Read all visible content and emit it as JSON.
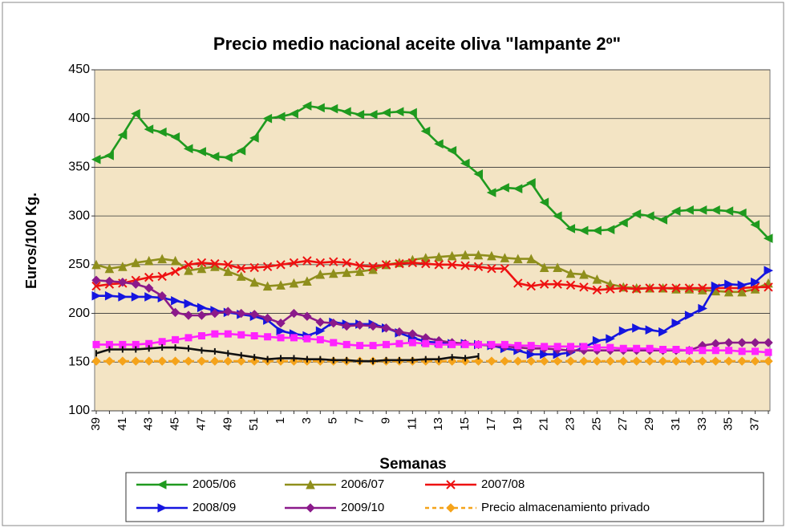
{
  "chart_data": {
    "type": "line",
    "title": "Precio medio nacional  aceite oliva \"lampante 2º\"",
    "y_label": "Euros/100 Kg.",
    "x_label": "Semanas",
    "categories": [
      "39",
      null,
      "41",
      null,
      "43",
      null,
      "45",
      null,
      "47",
      null,
      "49",
      null,
      "51",
      null,
      "1",
      null,
      "3",
      null,
      "5",
      null,
      "7",
      null,
      "9",
      null,
      "11",
      null,
      "13",
      null,
      "15",
      null,
      "17",
      null,
      "19",
      null,
      "21",
      null,
      "23",
      null,
      "25",
      null,
      "27",
      null,
      "29",
      null,
      "31",
      null,
      "33",
      null,
      "35",
      null,
      "37",
      null
    ],
    "ylim": [
      100,
      450
    ],
    "yticks": [
      100,
      150,
      200,
      250,
      300,
      350,
      400,
      450
    ],
    "grid": true,
    "legend": "bottom",
    "series": [
      {
        "name": "2005/06",
        "color": "#1f9a1f",
        "marker": "triangle-left",
        "values": [
          358,
          362,
          383,
          405,
          389,
          386,
          381,
          369,
          366,
          361,
          360,
          367,
          380,
          400,
          402,
          405,
          413,
          411,
          410,
          407,
          404,
          404,
          406,
          407,
          406,
          387,
          374,
          367,
          354,
          343,
          324,
          329,
          328,
          334,
          314,
          300,
          287,
          285,
          285,
          286,
          293,
          302,
          300,
          296,
          305,
          306,
          306,
          306,
          305,
          303,
          291,
          277
        ]
      },
      {
        "name": "2006/07",
        "color": "#8f8f1c",
        "marker": "triangle-up",
        "values": [
          250,
          246,
          248,
          252,
          254,
          256,
          254,
          244,
          246,
          248,
          243,
          238,
          232,
          228,
          229,
          231,
          233,
          240,
          241,
          242,
          243,
          245,
          250,
          252,
          255,
          257,
          258,
          259,
          260,
          260,
          259,
          257,
          256,
          256,
          247,
          247,
          241,
          240,
          235,
          230,
          227,
          226,
          226,
          226,
          225,
          225,
          224,
          223,
          222,
          222,
          225,
          231
        ]
      },
      {
        "name": "2007/08",
        "color": "#ee1111",
        "marker": "cross",
        "values": [
          228,
          230,
          231,
          234,
          237,
          238,
          243,
          250,
          252,
          251,
          250,
          246,
          247,
          248,
          250,
          252,
          254,
          252,
          253,
          252,
          249,
          248,
          250,
          251,
          252,
          251,
          250,
          250,
          249,
          248,
          246,
          246,
          231,
          228,
          230,
          230,
          229,
          227,
          224,
          225,
          226,
          225,
          226,
          226,
          226,
          226,
          226,
          226,
          226,
          226,
          227,
          227
        ]
      },
      {
        "name": "2008/09",
        "color": "#1515e0",
        "marker": "triangle-right",
        "values": [
          218,
          218,
          217,
          217,
          217,
          216,
          213,
          210,
          206,
          203,
          201,
          199,
          197,
          193,
          182,
          179,
          177,
          182,
          191,
          189,
          189,
          189,
          185,
          180,
          175,
          171,
          170,
          169,
          169,
          168,
          167,
          164,
          162,
          158,
          158,
          158,
          160,
          165,
          172,
          174,
          182,
          185,
          183,
          181,
          190,
          198,
          205,
          228,
          230,
          229,
          232,
          244
        ]
      },
      {
        "name": "2009/10",
        "color": "#8b1a8b",
        "marker": "diamond",
        "values": [
          234,
          233,
          232,
          230,
          226,
          218,
          201,
          198,
          198,
          200,
          202,
          200,
          199,
          195,
          190,
          200,
          197,
          191,
          190,
          187,
          188,
          187,
          185,
          181,
          179,
          175,
          172,
          170,
          169,
          168,
          167,
          166,
          165,
          164,
          164,
          163,
          162,
          162,
          162,
          162,
          162,
          162,
          162,
          162,
          162,
          162,
          167,
          169,
          170,
          170,
          170,
          170
        ]
      },
      {
        "name": "Precio almacenamiento privado",
        "color": "#f5a31a",
        "marker": "diamond",
        "dashed": true,
        "values": [
          151,
          151,
          151,
          151,
          151,
          151,
          151,
          151,
          151,
          151,
          151,
          151,
          151,
          151,
          151,
          151,
          151,
          151,
          151,
          151,
          151,
          151,
          151,
          151,
          151,
          151,
          151,
          151,
          151,
          151,
          151,
          151,
          151,
          151,
          151,
          151,
          151,
          151,
          151,
          151,
          151,
          151,
          151,
          151,
          151,
          151,
          151,
          151,
          151,
          151,
          151,
          151
        ]
      },
      {
        "color": "#ff22ff",
        "marker": "square",
        "values": [
          168,
          168,
          168,
          168,
          169,
          171,
          173,
          175,
          177,
          179,
          179,
          178,
          177,
          176,
          175,
          175,
          174,
          173,
          170,
          168,
          167,
          167,
          168,
          169,
          170,
          169,
          168,
          168,
          168,
          168,
          168,
          168,
          167,
          167,
          166,
          166,
          166,
          166,
          165,
          165,
          164,
          164,
          164,
          163,
          163,
          162,
          162,
          162,
          162,
          161,
          161,
          160
        ]
      },
      {
        "color": "#111111",
        "marker": "dash",
        "values": [
          159,
          163,
          163,
          163,
          164,
          165,
          165,
          164,
          162,
          161,
          159,
          157,
          155,
          153,
          154,
          154,
          153,
          153,
          152,
          152,
          151,
          151,
          152,
          152,
          152,
          153,
          153,
          155,
          154,
          156,
          null,
          null,
          null,
          null,
          null,
          null,
          null,
          null,
          null,
          null,
          null,
          null,
          null,
          null,
          null,
          null,
          null,
          null,
          null,
          null,
          null,
          null
        ]
      }
    ]
  }
}
